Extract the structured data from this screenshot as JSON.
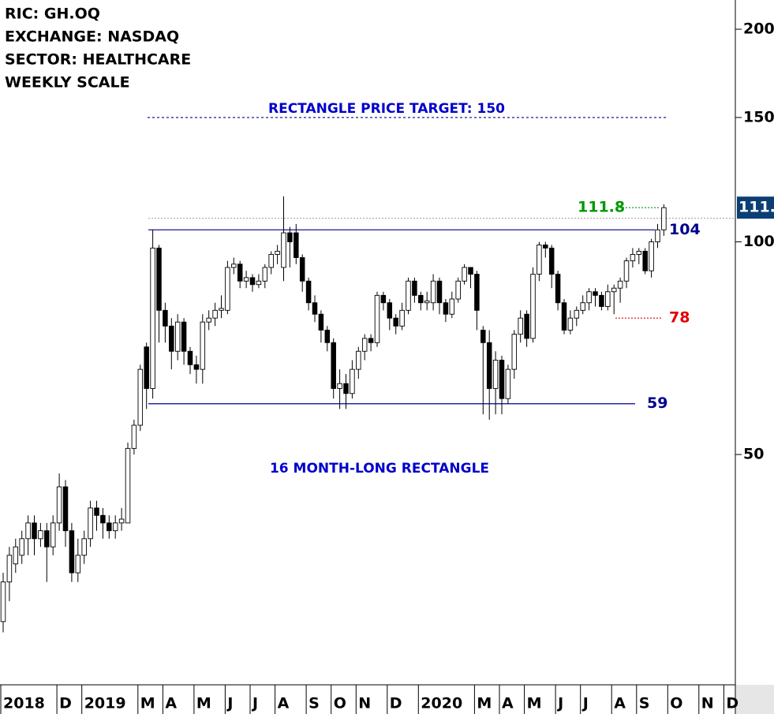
{
  "header": {
    "lines": [
      "RIC: GH.OQ",
      "EXCHANGE: NASDAQ",
      "SECTOR: HEALTHCARE",
      "WEEKLY SCALE"
    ]
  },
  "chart_data": {
    "type": "candlestick",
    "log_scale": true,
    "ylim": [
      23.6,
      220
    ],
    "yticks": [
      50,
      100,
      150,
      200
    ],
    "categories": [
      "2018",
      null,
      null,
      null,
      null,
      null,
      null,
      null,
      null,
      "D",
      null,
      null,
      null,
      "2019",
      null,
      null,
      null,
      null,
      null,
      null,
      null,
      null,
      "M",
      null,
      null,
      null,
      "A",
      null,
      null,
      null,
      null,
      "M",
      null,
      null,
      null,
      null,
      "J",
      null,
      null,
      null,
      "J",
      null,
      null,
      null,
      "A",
      null,
      null,
      null,
      null,
      "S",
      null,
      null,
      null,
      "O",
      null,
      null,
      null,
      "N",
      null,
      null,
      null,
      null,
      "D",
      null,
      null,
      null,
      null,
      "2020",
      null,
      null,
      null,
      null,
      null,
      null,
      null,
      null,
      "M",
      null,
      null,
      null,
      "A",
      null,
      null,
      null,
      "M",
      null,
      null,
      null,
      null,
      "J",
      null,
      null,
      null,
      "J",
      null,
      null,
      null,
      null,
      "A",
      null,
      null,
      null,
      "S",
      null,
      null,
      null,
      null,
      "O",
      null,
      null,
      null,
      null,
      "N",
      null,
      null,
      null,
      "D",
      null
    ],
    "open": [
      29,
      33,
      35,
      36,
      38,
      40,
      38,
      39,
      37,
      40,
      45,
      39,
      34,
      36,
      38,
      42,
      41,
      40,
      39,
      40,
      40,
      51,
      55,
      71,
      62,
      98,
      80,
      76,
      70,
      77,
      70,
      67,
      66,
      77,
      78,
      80,
      80,
      92,
      93,
      88,
      89,
      87,
      88,
      92,
      96,
      92,
      103,
      103,
      95,
      88,
      82,
      79,
      75,
      72,
      62,
      63,
      61,
      66,
      70,
      73,
      72,
      84,
      82,
      78,
      76,
      80,
      88,
      84,
      82,
      82,
      88,
      82,
      79,
      83,
      88,
      92,
      90,
      75,
      72,
      62,
      68,
      60,
      66,
      74,
      79,
      73,
      90,
      99,
      98,
      90,
      82,
      75,
      78,
      80,
      82,
      85,
      84,
      81,
      85,
      86,
      88,
      94,
      96,
      97,
      91,
      100,
      104,
      null,
      null,
      null,
      null,
      null,
      null,
      null,
      null,
      null,
      null,
      null
    ],
    "high": [
      34,
      37,
      38,
      39,
      41,
      41,
      40,
      40,
      41,
      47,
      46,
      40,
      38,
      39,
      43,
      43,
      42,
      41,
      41,
      42,
      52,
      56,
      67,
      72,
      104,
      99,
      82,
      78,
      79,
      78,
      71,
      69,
      79,
      80,
      82,
      84,
      94,
      95,
      94,
      91,
      90,
      90,
      93,
      97,
      99,
      116,
      105,
      106,
      96,
      89,
      84,
      80,
      76,
      73,
      66,
      65,
      68,
      71,
      74,
      74,
      85,
      85,
      83,
      79,
      82,
      89,
      89,
      85,
      85,
      90,
      89,
      83,
      85,
      89,
      93,
      92,
      91,
      76,
      75,
      70,
      69,
      67,
      75,
      80,
      80,
      92,
      100,
      100,
      99,
      91,
      83,
      80,
      81,
      84,
      86,
      86,
      85,
      87,
      87,
      89,
      95,
      98,
      98,
      98,
      101,
      106,
      113,
      null,
      null,
      null,
      null,
      null,
      null,
      null,
      null,
      null,
      null,
      null
    ],
    "low": [
      28,
      31,
      34,
      35,
      36,
      36,
      37,
      33,
      36,
      39,
      37,
      33,
      33,
      35,
      37,
      39,
      38,
      38,
      38,
      39,
      40,
      50,
      54,
      58,
      60,
      72,
      72,
      66,
      68,
      67,
      65,
      63,
      63,
      75,
      76,
      78,
      79,
      90,
      86,
      86,
      85,
      86,
      86,
      90,
      93,
      88,
      92,
      93,
      85,
      80,
      77,
      72,
      70,
      60,
      58,
      58,
      60,
      64,
      68,
      70,
      71,
      80,
      75,
      74,
      75,
      79,
      82,
      80,
      80,
      80,
      79,
      77,
      78,
      82,
      87,
      86,
      75,
      57,
      56,
      57,
      57,
      59,
      64,
      72,
      71,
      72,
      88,
      95,
      86,
      80,
      74,
      74,
      76,
      79,
      80,
      81,
      80,
      80,
      79,
      82,
      86,
      92,
      93,
      90,
      89,
      98,
      102,
      null,
      null,
      null,
      null,
      null,
      null,
      null,
      null,
      null,
      null,
      null
    ],
    "close": [
      33,
      36,
      37,
      38,
      40,
      38,
      39,
      37,
      40,
      45,
      39,
      34,
      36,
      38,
      42,
      41,
      40,
      39,
      40,
      40.5,
      51,
      55,
      66,
      62,
      98,
      80,
      76,
      70,
      77,
      70,
      67,
      66,
      77,
      78,
      80,
      80.5,
      92,
      93,
      88,
      89,
      87,
      88,
      92,
      96,
      97,
      103,
      100,
      95,
      88,
      82,
      79,
      75,
      72,
      62,
      63,
      61,
      66,
      70,
      73,
      72,
      84,
      82,
      78,
      76,
      80,
      88,
      84,
      82,
      82.5,
      88,
      82,
      79,
      83,
      88,
      92,
      90,
      80,
      72,
      62,
      68,
      60,
      66,
      74,
      78,
      73,
      90,
      99,
      98,
      90,
      82,
      75,
      78,
      80,
      82,
      85,
      84,
      81,
      85,
      86,
      88,
      94,
      96,
      97,
      91,
      100,
      104,
      111.8,
      null,
      null,
      null,
      null,
      null,
      null,
      null,
      null,
      null,
      null,
      null
    ],
    "up_color": "#ffffff",
    "down_color": "#000000",
    "levels": [
      {
        "value": 150,
        "color": "#00008b",
        "style": "dashed"
      },
      {
        "value": 108,
        "color": "#b0b0b0",
        "style": "dotted"
      },
      {
        "value": 111.8,
        "color": "#009900",
        "style": "dotted"
      },
      {
        "value": 104,
        "color": "#00008b",
        "style": "solid"
      },
      {
        "value": 78,
        "color": "#e00000",
        "style": "dotted"
      },
      {
        "value": 59,
        "color": "#00008b",
        "style": "solid"
      }
    ],
    "annotations": [
      "RECTANGLE PRICE TARGET: 150",
      "16 MONTH-LONG RECTANGLE"
    ]
  }
}
